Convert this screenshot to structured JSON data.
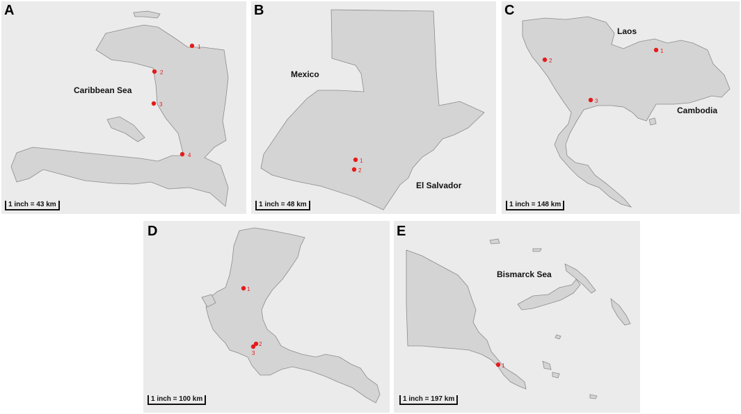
{
  "panels": [
    {
      "id": "A",
      "letter": "A",
      "scale": "1 inch = 43  km",
      "labels": [
        "Caribbean Sea"
      ],
      "sites": [
        "1",
        "2",
        "3",
        "4"
      ]
    },
    {
      "id": "B",
      "letter": "B",
      "scale": "1 inch = 48  km",
      "labels": [
        "Mexico",
        "El Salvador"
      ],
      "sites": [
        "1",
        "2"
      ]
    },
    {
      "id": "C",
      "letter": "C",
      "scale": "1 inch = 148 km",
      "labels": [
        "Laos",
        "Cambodia"
      ],
      "sites": [
        "1",
        "2",
        "3"
      ]
    },
    {
      "id": "D",
      "letter": "D",
      "scale": "1 inch = 100 km",
      "labels": [],
      "sites": [
        "1",
        "2",
        "3"
      ]
    },
    {
      "id": "E",
      "letter": "E",
      "scale": "1 inch = 197 km",
      "labels": [
        "Bismarck Sea"
      ],
      "sites": [
        "1"
      ]
    }
  ],
  "colors": {
    "panel_bg": "#ebebeb",
    "land": "#d4d4d4",
    "coast": "#8a8a8a",
    "site": "#e51b1b"
  }
}
